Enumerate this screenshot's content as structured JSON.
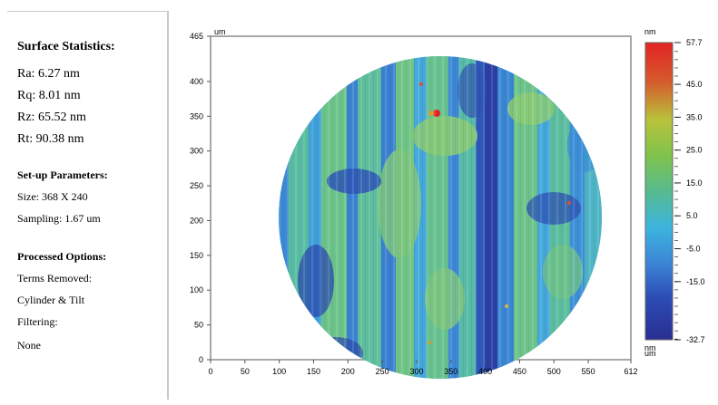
{
  "surface_statistics": {
    "heading": "Surface Statistics:",
    "ra": "Ra: 6.27 nm",
    "rq": "Rq: 8.01 nm",
    "rz": "Rz: 65.52 nm",
    "rt": "Rt: 90.38 nm"
  },
  "setup_parameters": {
    "heading": "Set-up Parameters:",
    "size": "Size: 368 X 240",
    "sampling": "Sampling: 1.67 um"
  },
  "processed_options": {
    "heading": "Processed Options:",
    "terms_label": "Terms Removed:",
    "terms_value": "Cylinder & Tilt",
    "filtering_label": "Filtering:",
    "filtering_value": "None"
  },
  "chart_data": {
    "type": "heatmap",
    "x_unit": "um",
    "y_unit": "um",
    "x_ticks": [
      0,
      50,
      100,
      150,
      200,
      250,
      300,
      350,
      400,
      450,
      500,
      550,
      612
    ],
    "y_ticks": [
      0,
      50,
      100,
      150,
      200,
      250,
      300,
      350,
      400,
      465
    ],
    "xlim": [
      0,
      612
    ],
    "ylim": [
      0,
      465
    ],
    "colorbar": {
      "unit_top": "nm",
      "unit_bottom": "nm",
      "ticks": [
        "57.7",
        "45.0",
        "35.0",
        "25.0",
        "15.0",
        "5.0",
        "-5.0",
        "-15.0",
        "-32.7"
      ],
      "min": -32.7,
      "max": 57.7
    }
  }
}
